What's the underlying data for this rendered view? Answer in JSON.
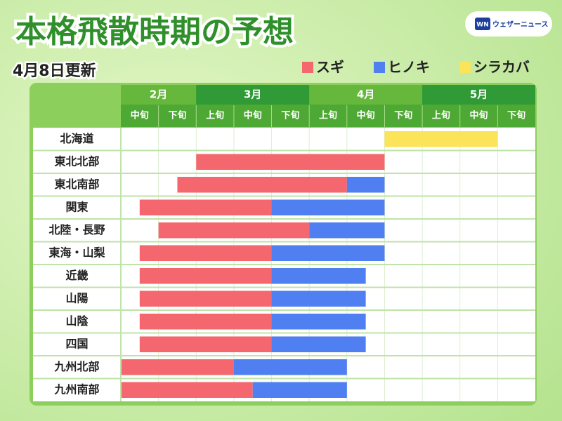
{
  "chart_data": {
    "type": "timeline",
    "title": "本格飛散時期の予想",
    "subtitle": "4月8日更新",
    "logo": {
      "mark": "WN",
      "text": "ウェザーニュース"
    },
    "months": [
      "2月",
      "3月",
      "4月",
      "5月"
    ],
    "xticks": [
      0,
      2,
      5,
      8
    ],
    "periods": [
      "中旬",
      "下旬",
      "上旬",
      "中旬",
      "下旬",
      "上旬",
      "中旬",
      "下旬",
      "上旬",
      "中旬",
      "下旬"
    ],
    "xlim": [
      0,
      11
    ],
    "categories": [
      "北海道",
      "東北北部",
      "東北南部",
      "関東",
      "北陸・長野",
      "東海・山梨",
      "近畿",
      "山陽",
      "山陰",
      "四国",
      "九州北部",
      "九州南部"
    ],
    "series": [
      {
        "name": "スギ",
        "color": "#f4676e",
        "starts": [
          null,
          2,
          1.5,
          0.5,
          1,
          0.5,
          0.5,
          0.5,
          0.5,
          0.5,
          0,
          0
        ],
        "ends": [
          null,
          7,
          6,
          4,
          5,
          4,
          4,
          4,
          4,
          4,
          3,
          3.5
        ]
      },
      {
        "name": "ヒノキ",
        "color": "#4f7ff0",
        "starts": [
          null,
          null,
          6,
          4,
          5,
          4,
          4,
          4,
          4,
          4,
          3,
          3.5
        ],
        "ends": [
          null,
          null,
          7,
          7,
          7,
          7,
          6.5,
          6.5,
          6.5,
          6.5,
          6,
          6
        ]
      },
      {
        "name": "シラカバ",
        "color": "#fbe35a",
        "starts": [
          7,
          null,
          null,
          null,
          null,
          null,
          null,
          null,
          null,
          null,
          null,
          null
        ],
        "ends": [
          10,
          null,
          null,
          null,
          null,
          null,
          null,
          null,
          null,
          null,
          null,
          null
        ]
      }
    ]
  }
}
